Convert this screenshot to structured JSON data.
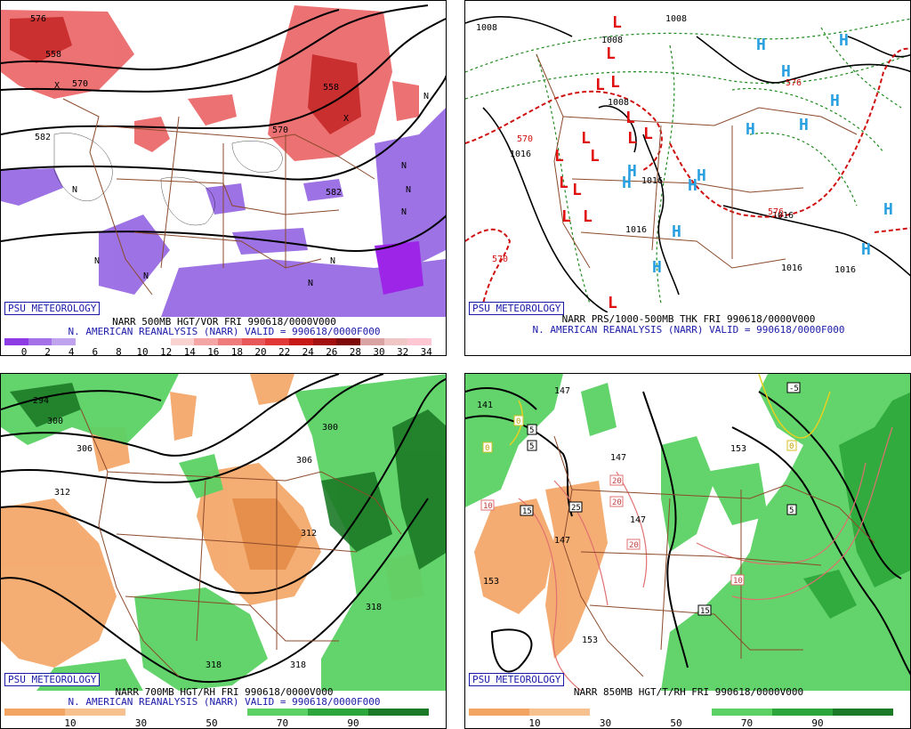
{
  "panels": [
    {
      "logo": "PSU METEOROLOGY",
      "title1": "NARR 500MB HGT/VOR FRI 990618/0000V000",
      "title2": "N. AMERICAN REANALYSIS (NARR) VALID = 990618/0000F000",
      "scale_labels": [
        "0",
        "2",
        "4",
        "6",
        "8",
        "10",
        "12",
        "14",
        "16",
        "18",
        "20",
        "22",
        "24",
        "26",
        "28",
        "30",
        "32",
        "34"
      ],
      "contour_labels": [
        "558",
        "570",
        "582",
        "582",
        "570",
        "558",
        "576"
      ],
      "symbol_labels": [
        "N",
        "N",
        "N",
        "N",
        "N",
        "N",
        "N",
        "N",
        "N",
        "X",
        "X"
      ]
    },
    {
      "logo": "PSU METEOROLOGY",
      "title1": "NARR PRS/1000-500MB THK FRI 990618/0000V000",
      "title2": "N. AMERICAN REANALYSIS (NARR) VALID = 990618/0000F000",
      "contour_labels": [
        "1008",
        "1008",
        "1008",
        "1016",
        "1016",
        "1016",
        "1016",
        "1016",
        "1016",
        "1008",
        "570",
        "570",
        "576",
        "576"
      ],
      "high_labels": [
        "H",
        "H",
        "H",
        "H",
        "H",
        "H",
        "H",
        "H",
        "H",
        "H",
        "H",
        "H",
        "H",
        "H"
      ],
      "low_labels": [
        "L",
        "L",
        "L",
        "L",
        "L",
        "L",
        "L",
        "L",
        "L",
        "L",
        "L",
        "L",
        "L",
        "L",
        "L"
      ]
    },
    {
      "logo": "PSU METEOROLOGY",
      "title1": "NARR 700MB HGT/RH FRI 990618/0000V000",
      "title2": "N. AMERICAN REANALYSIS (NARR) VALID = 990618/0000F000",
      "scale_labels": [
        "10",
        "30",
        "50",
        "70",
        "90"
      ],
      "contour_labels": [
        "294",
        "300",
        "306",
        "312",
        "312",
        "306",
        "300",
        "318",
        "318",
        "318"
      ]
    },
    {
      "logo": "PSU METEOROLOGY",
      "title1": "NARR 850MB HGT/T/RH FRI 990618/0000V000",
      "scale_labels": [
        "10",
        "30",
        "50",
        "70",
        "90"
      ],
      "contour_labels": [
        "141",
        "147",
        "147",
        "147",
        "147",
        "153",
        "153",
        "153"
      ],
      "temp_labels": [
        "0",
        "5",
        "0",
        "5",
        "10",
        "15",
        "25",
        "20",
        "20",
        "20",
        "10",
        "15",
        "-5",
        "0",
        "5"
      ]
    }
  ],
  "colors": {
    "vort": [
      "#8d3ce3",
      "#a471e9",
      "#bfa3ef",
      "#ffffff",
      "#ffffff",
      "#ffffff",
      "#ffffff",
      "#fbd2d2",
      "#f4a6a6",
      "#ef7c7c",
      "#e95858",
      "#e23737",
      "#c81919",
      "#a20f0f",
      "#7f0a0a",
      "#d9a3a3",
      "#f0c6c6",
      "#ffc7d4"
    ],
    "rh": [
      "#f3a463",
      "#f6c08f",
      "#ffffff",
      "#ffffff",
      "#5bd164",
      "#2ca63a",
      "#1b7a26"
    ]
  }
}
